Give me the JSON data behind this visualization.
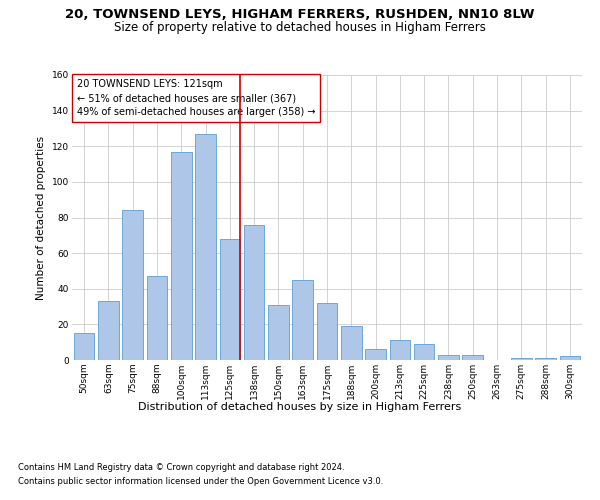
{
  "title1": "20, TOWNSEND LEYS, HIGHAM FERRERS, RUSHDEN, NN10 8LW",
  "title2": "Size of property relative to detached houses in Higham Ferrers",
  "xlabel": "Distribution of detached houses by size in Higham Ferrers",
  "ylabel": "Number of detached properties",
  "categories": [
    "50sqm",
    "63sqm",
    "75sqm",
    "88sqm",
    "100sqm",
    "113sqm",
    "125sqm",
    "138sqm",
    "150sqm",
    "163sqm",
    "175sqm",
    "188sqm",
    "200sqm",
    "213sqm",
    "225sqm",
    "238sqm",
    "250sqm",
    "263sqm",
    "275sqm",
    "288sqm",
    "300sqm"
  ],
  "values": [
    15,
    33,
    84,
    47,
    117,
    127,
    68,
    76,
    31,
    45,
    32,
    19,
    6,
    11,
    9,
    3,
    3,
    0,
    1,
    1,
    2
  ],
  "bar_color": "#aec6e8",
  "bar_edge_color": "#5a9fd4",
  "marker_line_color": "#cc0000",
  "annotation_text1": "20 TOWNSEND LEYS: 121sqm",
  "annotation_text2": "← 51% of detached houses are smaller (367)",
  "annotation_text3": "49% of semi-detached houses are larger (358) →",
  "annotation_box_color": "#ffffff",
  "annotation_box_edge_color": "#cc0000",
  "ylim": [
    0,
    160
  ],
  "yticks": [
    0,
    20,
    40,
    60,
    80,
    100,
    120,
    140,
    160
  ],
  "grid_color": "#cccccc",
  "footer1": "Contains HM Land Registry data © Crown copyright and database right 2024.",
  "footer2": "Contains public sector information licensed under the Open Government Licence v3.0.",
  "bg_color": "#ffffff",
  "title1_fontsize": 9.5,
  "title2_fontsize": 8.5,
  "xlabel_fontsize": 8,
  "ylabel_fontsize": 7.5,
  "tick_fontsize": 6.5,
  "annotation_fontsize": 7,
  "footer_fontsize": 6
}
